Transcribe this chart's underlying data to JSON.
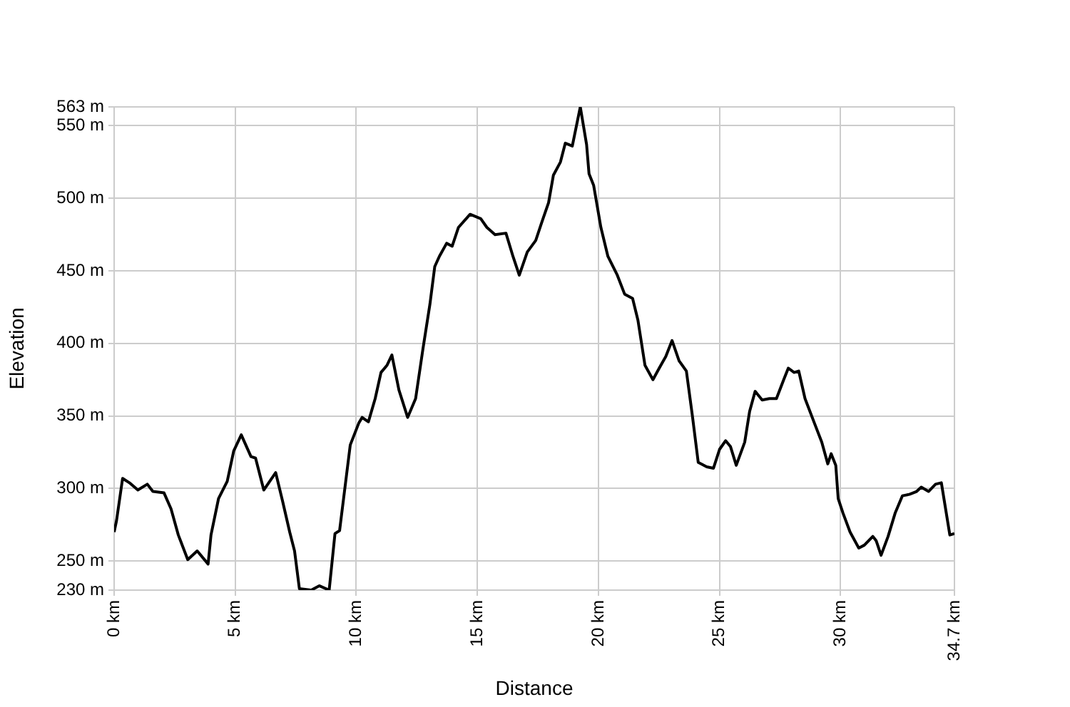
{
  "chart_data": {
    "type": "line",
    "xlabel": "Distance",
    "ylabel": "Elevation",
    "color": "#000000",
    "grid": true,
    "legend": false,
    "marker": "none",
    "line_style": "solid",
    "xlim": [
      0,
      34.7
    ],
    "xticks": [
      {
        "value": 0,
        "label": "0 km"
      },
      {
        "value": 5,
        "label": "5 km"
      },
      {
        "value": 10,
        "label": "10 km"
      },
      {
        "value": 15,
        "label": "15 km"
      },
      {
        "value": 20,
        "label": "20 km"
      },
      {
        "value": 25,
        "label": "25 km"
      },
      {
        "value": 30,
        "label": "30 km"
      },
      {
        "value": 34.7,
        "label": "34.7 km"
      }
    ],
    "ylim": [
      230,
      563
    ],
    "yticks": [
      {
        "value": 230,
        "label": "230 m"
      },
      {
        "value": 250,
        "label": "250 m"
      },
      {
        "value": 300,
        "label": "300 m"
      },
      {
        "value": 350,
        "label": "350 m"
      },
      {
        "value": 400,
        "label": "400 m"
      },
      {
        "value": 450,
        "label": "450 m"
      },
      {
        "value": 500,
        "label": "500 m"
      },
      {
        "value": 550,
        "label": "550 m"
      },
      {
        "value": 563,
        "label": "563 m"
      }
    ],
    "x": [
      0,
      0.1,
      0.35,
      0.63,
      0.98,
      1.37,
      1.6,
      2.06,
      2.35,
      2.65,
      3.04,
      3.43,
      3.88,
      4.0,
      4.31,
      4.67,
      4.94,
      5.25,
      5.65,
      5.84,
      6.18,
      6.67,
      6.96,
      7.25,
      7.45,
      7.65,
      8.14,
      8.47,
      8.88,
      9.12,
      9.31,
      9.75,
      10.1,
      10.24,
      10.5,
      10.78,
      11.02,
      11.27,
      11.47,
      11.76,
      12.12,
      12.45,
      12.75,
      13.04,
      13.24,
      13.43,
      13.73,
      13.96,
      14.22,
      14.7,
      15.14,
      15.39,
      15.73,
      16.18,
      16.47,
      16.73,
      17.06,
      17.41,
      17.65,
      17.94,
      18.14,
      18.43,
      18.63,
      18.92,
      19.25,
      19.51,
      19.61,
      19.8,
      20.1,
      20.39,
      20.78,
      21.08,
      21.41,
      21.63,
      21.92,
      22.25,
      22.51,
      22.78,
      23.04,
      23.33,
      23.63,
      23.88,
      24.12,
      24.47,
      24.75,
      25.0,
      25.25,
      25.45,
      25.69,
      26.04,
      26.24,
      26.47,
      26.76,
      27.06,
      27.35,
      27.65,
      27.84,
      28.08,
      28.27,
      28.53,
      28.92,
      29.22,
      29.47,
      29.61,
      29.8,
      29.9,
      30.1,
      30.39,
      30.75,
      30.98,
      31.33,
      31.47,
      31.67,
      31.96,
      32.25,
      32.55,
      32.84,
      33.14,
      33.33,
      33.63,
      33.92,
      34.16,
      34.51,
      34.7
    ],
    "values": [
      270,
      278,
      307,
      304,
      299,
      303,
      298,
      297,
      286,
      268,
      251,
      257,
      248,
      268,
      293,
      305,
      326,
      337,
      322,
      321,
      299,
      311,
      291,
      270,
      257,
      231,
      230,
      233,
      230,
      269,
      271,
      330,
      345,
      349,
      346,
      362,
      380,
      385,
      392,
      368,
      349,
      362,
      396,
      427,
      453,
      460,
      469,
      467,
      480,
      489,
      486,
      480,
      475,
      476,
      460,
      447,
      463,
      471,
      483,
      497,
      516,
      525,
      538,
      536,
      563,
      537,
      517,
      509,
      480,
      460,
      447,
      434,
      431,
      416,
      385,
      375,
      383,
      391,
      402,
      388,
      381,
      350,
      318,
      315,
      314,
      327,
      333,
      329,
      316,
      332,
      353,
      367,
      361,
      362,
      362,
      375,
      383,
      380,
      381,
      362,
      345,
      332,
      317,
      324,
      316,
      293,
      283,
      270,
      259,
      261,
      267,
      264,
      254,
      267,
      283,
      295,
      296,
      298,
      301,
      298,
      303,
      304,
      268,
      269
    ]
  }
}
